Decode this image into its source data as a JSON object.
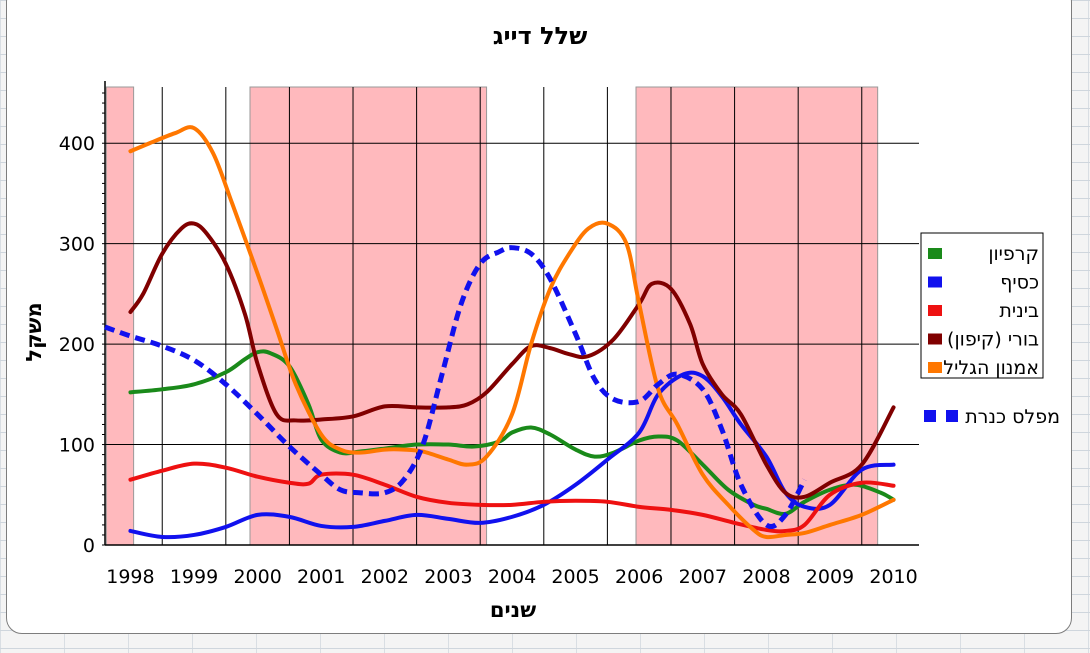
{
  "chart_data": {
    "type": "line",
    "title": "שלל דייג",
    "xlabel": "שנים",
    "ylabel": "משקל",
    "xlim": [
      1997.6,
      2010.4
    ],
    "ylim": [
      0,
      450
    ],
    "yticks": [
      0,
      100,
      200,
      300,
      400
    ],
    "categories": [
      "1998",
      "1999",
      "2000",
      "2001",
      "2002",
      "2003",
      "2004",
      "2005",
      "2006",
      "2007",
      "2008",
      "2009",
      "2010"
    ],
    "grid": true,
    "legend_position": "right",
    "shaded_periods": [
      [
        1997.62,
        1998.05
      ],
      [
        1999.88,
        2003.6
      ],
      [
        2005.95,
        2009.75
      ]
    ],
    "shade_color": "#ffb9bd",
    "series": [
      {
        "name": "קרפיון",
        "color": "#1a8a1a",
        "style": "solid",
        "x": [
          1998,
          1998.5,
          1999,
          1999.5,
          1999.8,
          2000,
          2000.2,
          2000.5,
          2000.8,
          2001,
          2001.3,
          2001.6,
          2002,
          2002.5,
          2003,
          2003.4,
          2003.8,
          2004,
          2004.3,
          2004.6,
          2005,
          2005.3,
          2005.6,
          2006,
          2006.3,
          2006.6,
          2007,
          2007.4,
          2007.8,
          2008,
          2008.3,
          2008.6,
          2009,
          2009.4,
          2009.8,
          2010
        ],
        "y": [
          152,
          155,
          160,
          172,
          185,
          192,
          191,
          178,
          140,
          105,
          92,
          93,
          96,
          100,
          100,
          98,
          103,
          112,
          117,
          110,
          95,
          88,
          92,
          104,
          108,
          104,
          80,
          55,
          40,
          36,
          31,
          43,
          55,
          60,
          52,
          45
        ]
      },
      {
        "name": "כסיף",
        "color": "#1111ee",
        "style": "solid",
        "x": [
          1998,
          1998.5,
          1999,
          1999.5,
          2000,
          2000.5,
          2001,
          2001.5,
          2002,
          2002.5,
          2003,
          2003.5,
          2004,
          2004.5,
          2005,
          2005.5,
          2006,
          2006.3,
          2006.7,
          2007,
          2007.3,
          2007.6,
          2008,
          2008.3,
          2008.6,
          2009,
          2009.5,
          2010
        ],
        "y": [
          14,
          8,
          10,
          18,
          30,
          28,
          19,
          18,
          24,
          30,
          26,
          22,
          28,
          40,
          60,
          85,
          112,
          150,
          170,
          168,
          148,
          120,
          88,
          52,
          38,
          40,
          75,
          80
        ]
      },
      {
        "name": "בינית",
        "color": "#ee1111",
        "style": "solid",
        "x": [
          1998,
          1998.5,
          1999,
          1999.5,
          2000,
          2000.5,
          2000.8,
          2001,
          2001.5,
          2002,
          2002.5,
          2003,
          2003.5,
          2004,
          2004.5,
          2005,
          2005.5,
          2006,
          2006.5,
          2007,
          2007.5,
          2008,
          2008.3,
          2008.6,
          2009,
          2009.5,
          2010
        ],
        "y": [
          65,
          74,
          81,
          77,
          68,
          62,
          61,
          70,
          70,
          60,
          48,
          42,
          40,
          40,
          43,
          44,
          43,
          38,
          35,
          30,
          22,
          15,
          14,
          20,
          50,
          62,
          59
        ]
      },
      {
        "name": "בורי (קיפון)",
        "color": "#800000",
        "style": "solid",
        "x": [
          1998,
          1998.2,
          1998.5,
          1998.8,
          1999,
          1999.2,
          1999.5,
          1999.8,
          2000,
          2000.3,
          2000.6,
          2001,
          2001.5,
          2002,
          2002.5,
          2003,
          2003.3,
          2003.6,
          2004,
          2004.3,
          2004.6,
          2004.9,
          2005.2,
          2005.6,
          2006,
          2006.2,
          2006.5,
          2006.8,
          2007,
          2007.3,
          2007.6,
          2008,
          2008.3,
          2008.6,
          2009,
          2009.5,
          2010
        ],
        "y": [
          232,
          250,
          290,
          315,
          320,
          310,
          280,
          230,
          180,
          130,
          124,
          125,
          128,
          138,
          137,
          137,
          140,
          152,
          180,
          198,
          196,
          190,
          188,
          205,
          240,
          260,
          255,
          220,
          180,
          150,
          130,
          80,
          52,
          48,
          62,
          80,
          137
        ]
      },
      {
        "name": "אמנון הגליל",
        "color": "#ff7700",
        "style": "solid",
        "x": [
          1998,
          1998.3,
          1998.7,
          1999,
          1999.3,
          1999.6,
          2000,
          2000.3,
          2000.6,
          2001,
          2001.3,
          2001.6,
          2002,
          2002.3,
          2002.6,
          2003,
          2003.3,
          2003.6,
          2004,
          2004.3,
          2004.6,
          2004.9,
          2005.2,
          2005.5,
          2005.8,
          2006,
          2006.3,
          2006.6,
          2007,
          2007.4,
          2007.8,
          2008,
          2008.3,
          2008.6,
          2009,
          2009.5,
          2010
        ],
        "y": [
          392,
          400,
          410,
          415,
          390,
          340,
          270,
          215,
          160,
          110,
          95,
          92,
          95,
          95,
          93,
          85,
          80,
          88,
          130,
          200,
          255,
          290,
          315,
          320,
          300,
          240,
          155,
          120,
          70,
          40,
          15,
          8,
          10,
          12,
          20,
          30,
          45
        ]
      },
      {
        "name": "מפלס כנרת",
        "color": "#1111ee",
        "style": "dash",
        "x": [
          1997.6,
          1998,
          1998.5,
          1999,
          1999.5,
          2000,
          2000.5,
          2001,
          2001.3,
          2001.6,
          2002,
          2002.3,
          2002.6,
          2002.9,
          2003.2,
          2003.5,
          2003.8,
          2004,
          2004.3,
          2004.6,
          2005,
          2005.3,
          2005.6,
          2006,
          2006.3,
          2006.6,
          2007,
          2007.3,
          2007.6,
          2008,
          2008.3,
          2008.6
        ],
        "y": [
          217,
          208,
          198,
          184,
          160,
          130,
          98,
          70,
          55,
          52,
          52,
          65,
          100,
          170,
          240,
          280,
          292,
          296,
          290,
          265,
          210,
          165,
          145,
          143,
          160,
          170,
          155,
          115,
          60,
          20,
          30,
          65
        ]
      }
    ]
  }
}
